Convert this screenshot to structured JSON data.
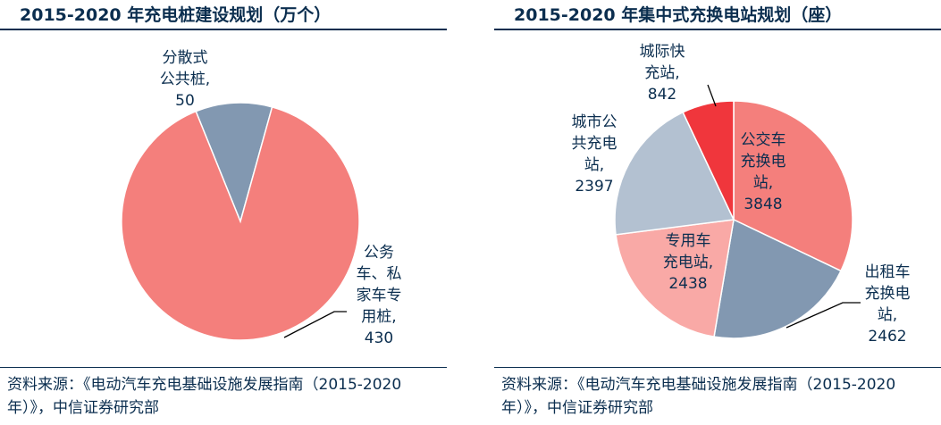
{
  "colors": {
    "navy": "#0b2e4f",
    "salmon": "#f47f7c",
    "slate": "#8298b1",
    "red": "#f0363c",
    "light_blue": "#b3c1d1",
    "pink": "#f9a9a6",
    "line": "#000000"
  },
  "chart_data": [
    {
      "type": "pie",
      "title": "2015-2020 年充电桩建设规划（万个）",
      "unit": "万个",
      "slices": [
        {
          "name": "分散式公共桩",
          "value": 50,
          "color": "#8298b1",
          "label_lines": [
            "分散式",
            "公共桩,",
            "50"
          ]
        },
        {
          "name": "公务车、私家车专用桩",
          "value": 430,
          "color": "#f47f7c",
          "label_lines": [
            "公务",
            "车、私",
            "家车专",
            "用桩,",
            "430"
          ]
        }
      ],
      "source": "资料来源：《电动汽车充电基础设施发展指南（2015-2020年）》，中信证券研究部"
    },
    {
      "type": "pie",
      "title": "2015-2020 年集中式充换电站规划（座）",
      "unit": "座",
      "slices": [
        {
          "name": "公交车充换电站",
          "value": 3848,
          "color": "#f47f7c",
          "label_lines": [
            "公交车",
            "充换电",
            "站,",
            "3848"
          ]
        },
        {
          "name": "出租车充换电站",
          "value": 2462,
          "color": "#8298b1",
          "label_lines": [
            "出租车",
            "充换电",
            "站,",
            "2462"
          ]
        },
        {
          "name": "专用车充电站",
          "value": 2438,
          "color": "#f9a9a6",
          "label_lines": [
            "专用车",
            "充电站,",
            "2438"
          ]
        },
        {
          "name": "城市公共充电站",
          "value": 2397,
          "color": "#b3c1d1",
          "label_lines": [
            "城市公",
            "共充电",
            "站,",
            "2397"
          ]
        },
        {
          "name": "城际快充站",
          "value": 842,
          "color": "#f0363c",
          "label_lines": [
            "城际快",
            "充站,",
            "842"
          ]
        }
      ],
      "source": "资料来源：《电动汽车充电基础设施发展指南（2015-2020年）》，中信证券研究部"
    }
  ]
}
